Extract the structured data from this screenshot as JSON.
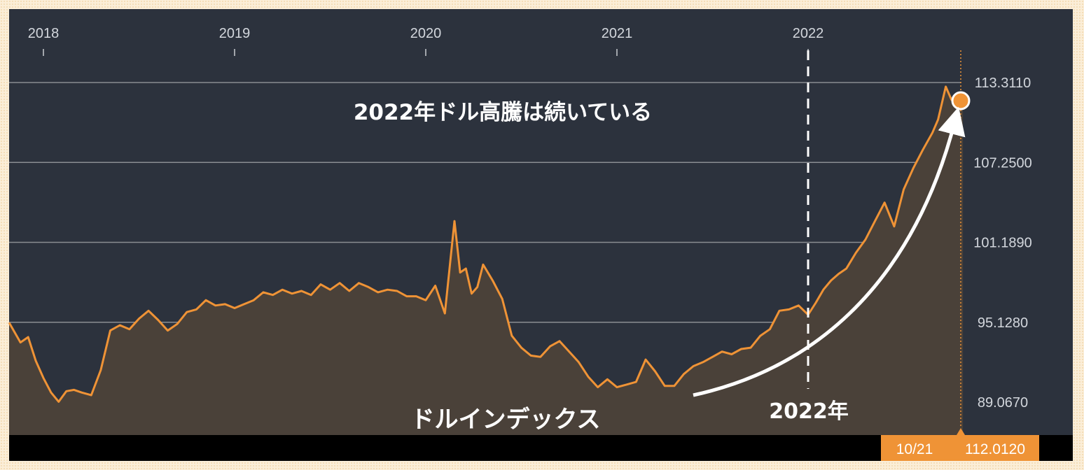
{
  "colors": {
    "panel": "#2c323d",
    "line": "#ef9336",
    "fill": "#4a4139",
    "grid": "#8a8d92",
    "badge": "#ef9336",
    "arrow": "#ffffff"
  },
  "annotations": {
    "headline": "2022年ドル高騰は続いている",
    "series_label": "ドルインデックス",
    "marker_label": "2022年"
  },
  "readout": {
    "date": "10/21",
    "value": "112.0120"
  },
  "chart_data": {
    "type": "area",
    "title": "",
    "xlabel": "",
    "ylabel": "",
    "x_ticks": [
      "2018",
      "2019",
      "2020",
      "2021",
      "2022"
    ],
    "y_ticks": [
      "89.0670",
      "95.1280",
      "101.1890",
      "107.2500",
      "113.3110"
    ],
    "ylim": [
      88.0,
      115.0
    ],
    "xlim": [
      2017.83,
      2022.83
    ],
    "marker_x": 2022.0,
    "grid": true,
    "series": [
      {
        "x": [
          2017.83,
          2017.88,
          2017.92,
          2017.96,
          2018.0,
          2018.04,
          2018.08,
          2018.12,
          2018.16,
          2018.2,
          2018.25,
          2018.3,
          2018.35,
          2018.4,
          2018.45,
          2018.5,
          2018.55,
          2018.6,
          2018.65,
          2018.7,
          2018.75,
          2018.8,
          2018.85,
          2018.9,
          2018.95,
          2019.0,
          2019.05,
          2019.1,
          2019.15,
          2019.2,
          2019.25,
          2019.3,
          2019.35,
          2019.4,
          2019.45,
          2019.5,
          2019.55,
          2019.6,
          2019.65,
          2019.7,
          2019.75,
          2019.8,
          2019.85,
          2019.9,
          2019.95,
          2020.0,
          2020.05,
          2020.1,
          2020.15,
          2020.18,
          2020.21,
          2020.24,
          2020.27,
          2020.3,
          2020.35,
          2020.4,
          2020.45,
          2020.5,
          2020.55,
          2020.6,
          2020.65,
          2020.7,
          2020.75,
          2020.8,
          2020.85,
          2020.9,
          2020.95,
          2021.0,
          2021.05,
          2021.1,
          2021.15,
          2021.2,
          2021.25,
          2021.3,
          2021.35,
          2021.4,
          2021.45,
          2021.5,
          2021.55,
          2021.6,
          2021.65,
          2021.7,
          2021.75,
          2021.8,
          2021.85,
          2021.9,
          2021.95,
          2022.0,
          2022.04,
          2022.08,
          2022.12,
          2022.16,
          2022.2,
          2022.25,
          2022.3,
          2022.35,
          2022.4,
          2022.45,
          2022.5,
          2022.55,
          2022.6,
          2022.65,
          2022.68,
          2022.72,
          2022.75,
          2022.78,
          2022.81
        ],
        "y": [
          95.1,
          93.6,
          94.0,
          92.2,
          90.9,
          89.8,
          89.1,
          89.9,
          90.0,
          89.8,
          89.6,
          91.5,
          94.5,
          94.9,
          94.6,
          95.4,
          96.0,
          95.3,
          94.5,
          95.0,
          95.9,
          96.1,
          96.8,
          96.4,
          96.5,
          96.2,
          96.5,
          96.8,
          97.4,
          97.2,
          97.6,
          97.3,
          97.5,
          97.2,
          98.0,
          97.6,
          98.1,
          97.5,
          98.1,
          97.8,
          97.4,
          97.6,
          97.5,
          97.1,
          97.1,
          96.8,
          97.9,
          95.8,
          102.8,
          98.9,
          99.2,
          97.3,
          97.8,
          99.5,
          98.3,
          96.9,
          94.1,
          93.2,
          92.6,
          92.5,
          93.3,
          93.7,
          92.9,
          92.1,
          91.0,
          90.2,
          90.8,
          90.2,
          90.4,
          90.6,
          92.3,
          91.4,
          90.3,
          90.3,
          91.2,
          91.8,
          92.1,
          92.5,
          92.9,
          92.7,
          93.1,
          93.2,
          94.1,
          94.6,
          96.0,
          96.1,
          96.4,
          95.7,
          96.6,
          97.6,
          98.3,
          98.8,
          99.2,
          100.4,
          101.4,
          102.8,
          104.2,
          102.4,
          105.2,
          106.8,
          108.2,
          109.5,
          110.5,
          113.0,
          112.0,
          111.6,
          112.0
        ]
      }
    ]
  }
}
